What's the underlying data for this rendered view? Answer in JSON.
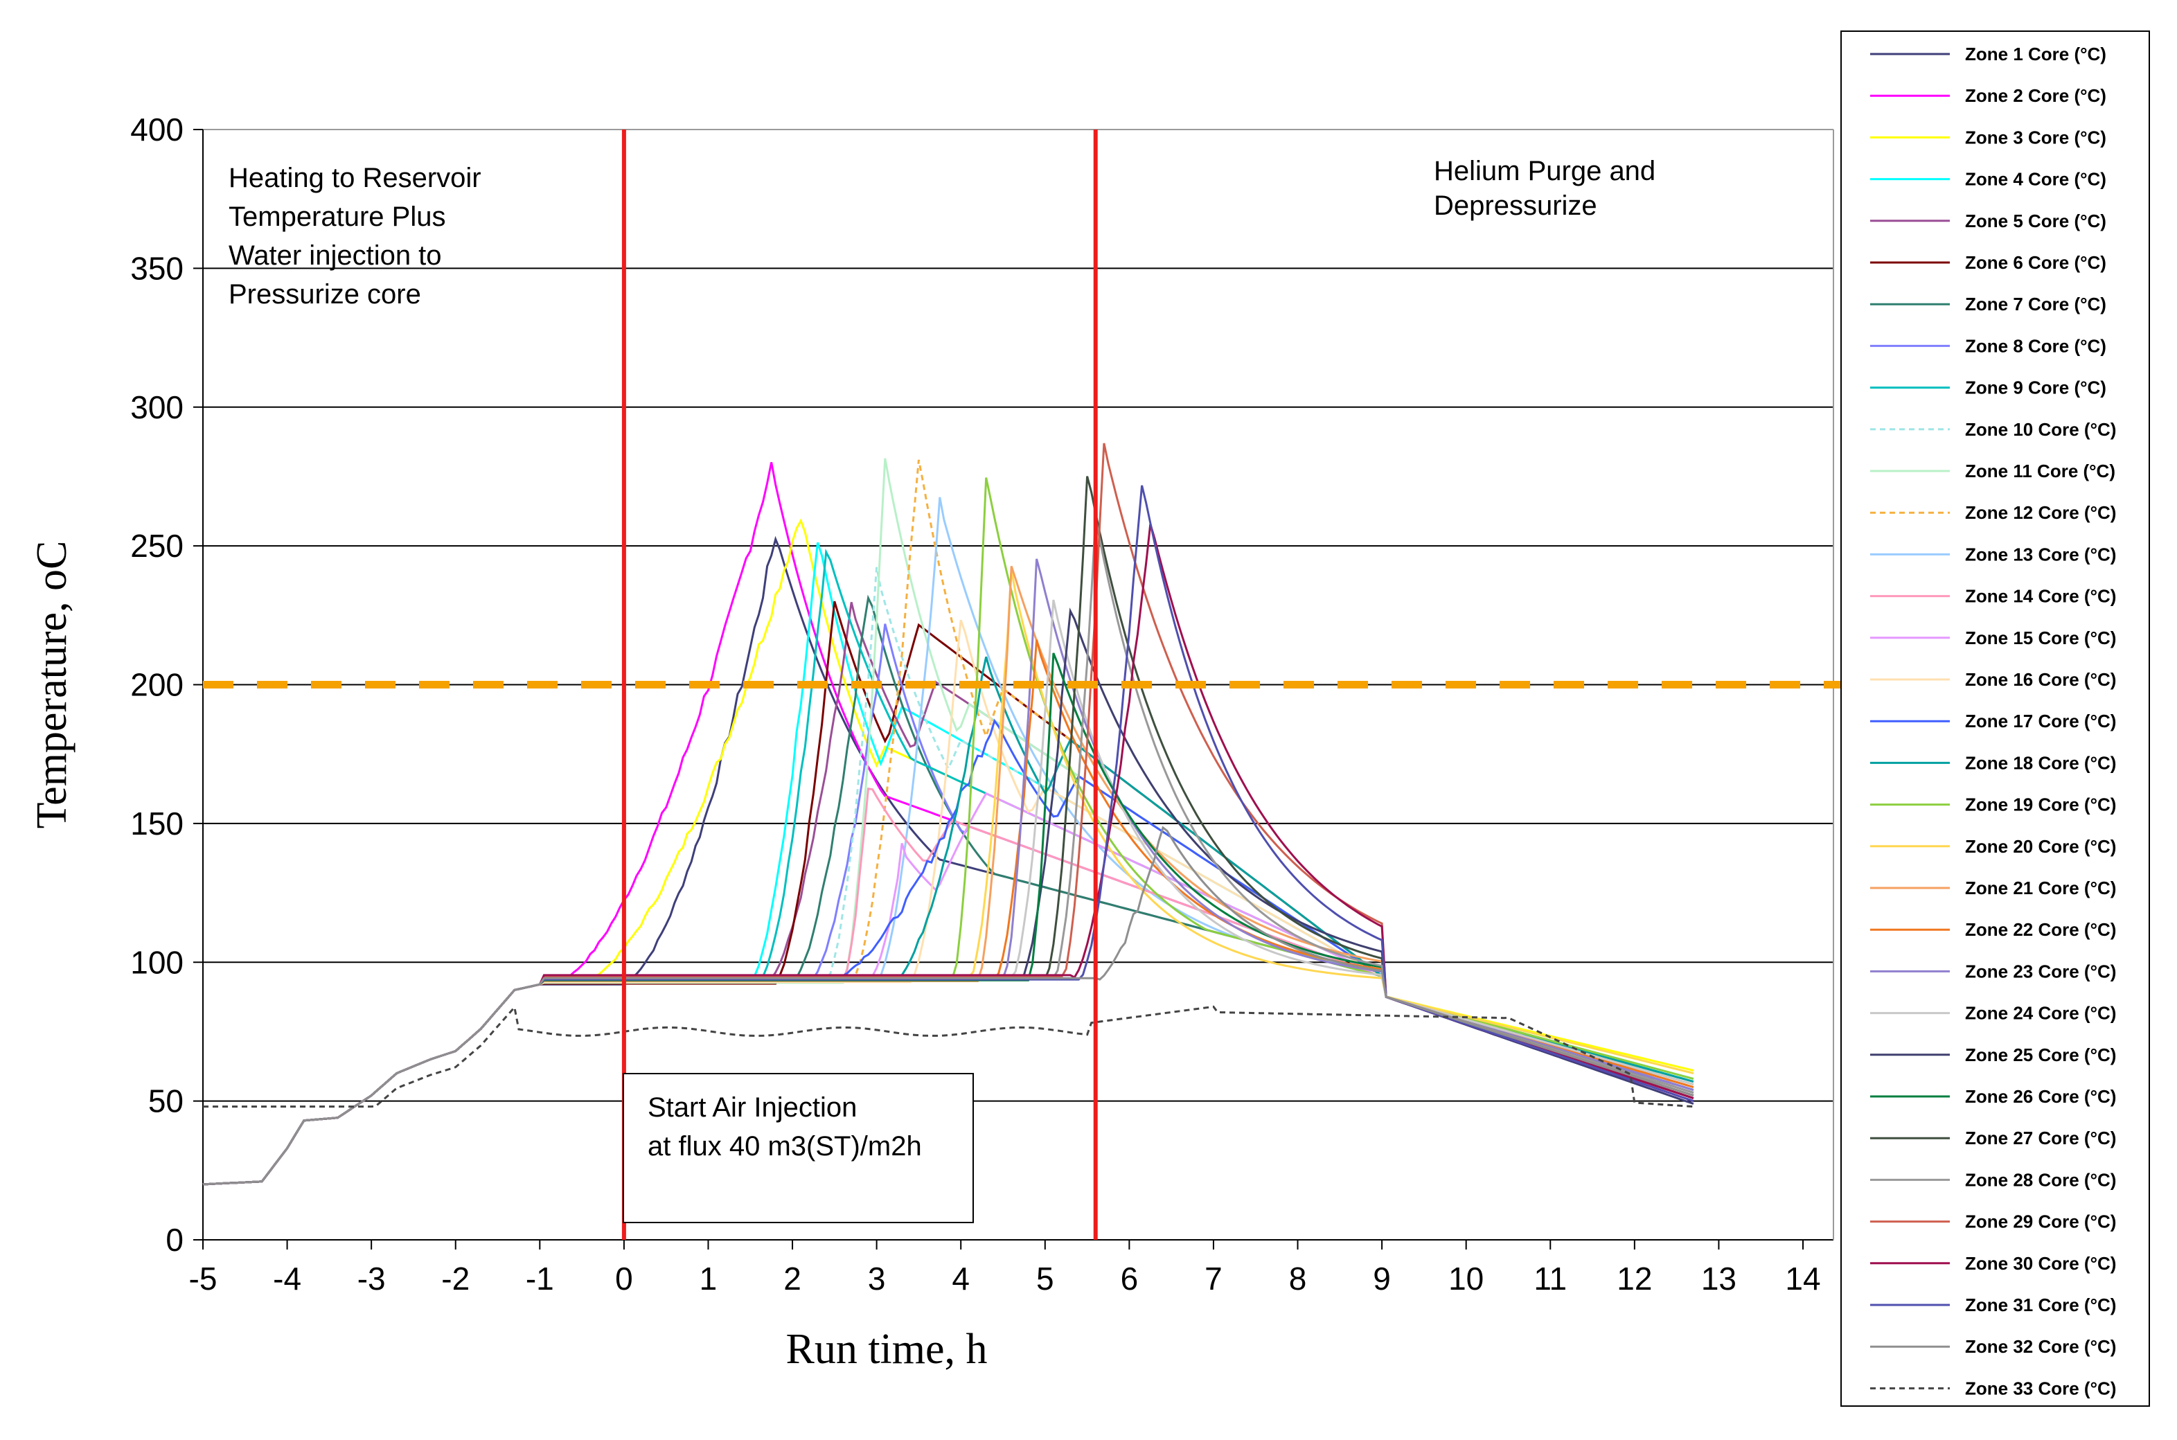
{
  "chart_data": {
    "type": "line",
    "xlabel": "Run time, h",
    "ylabel": "Temperature, oC",
    "xlim": [
      -5,
      14.5
    ],
    "ylim": [
      0,
      400
    ],
    "xticks": [
      -5,
      -4,
      -3,
      -2,
      -1,
      0,
      1,
      2,
      3,
      4,
      5,
      6,
      7,
      8,
      9,
      10,
      11,
      12,
      13,
      14
    ],
    "yticks": [
      0,
      50,
      100,
      150,
      200,
      250,
      300,
      350,
      400
    ],
    "grid": "horizontal",
    "legend_position": "right",
    "reference_lines": [
      {
        "name": "start-air-injection-line",
        "orientation": "vertical",
        "x": 0,
        "color": "#ee1c1c"
      },
      {
        "name": "end-air-injection-line",
        "orientation": "vertical",
        "x": 5.6,
        "color": "#ee1c1c"
      },
      {
        "name": "temperature-200-line",
        "orientation": "horizontal",
        "y": 200,
        "color": "#f5a100",
        "dashed": true
      }
    ],
    "annotations": [
      {
        "name": "heating-annotation",
        "lines": [
          "Heating to Reservoir",
          "Temperature  Plus",
          "Water injection to",
          "Pressurize core"
        ]
      },
      {
        "name": "purge-annotation",
        "lines": [
          "Helium Purge and",
          "Depressurize"
        ]
      },
      {
        "name": "air-injection-annotation",
        "lines": [
          "Start Air Injection",
          "at flux 40 m3(ST)/m2h"
        ],
        "boxed": true
      }
    ],
    "series": [
      {
        "name": "Zone 1 Core (°C)",
        "color": "#3f3f7a",
        "dashed": false,
        "peak_time": 1.8,
        "peak": 254,
        "onset": 0,
        "plateau_drift": 0,
        "end_value": 49
      },
      {
        "name": "Zone 2 Core (°C)",
        "color": "#ff00ff",
        "dashed": false,
        "peak_time": 1.75,
        "peak": 279,
        "onset": -0.8,
        "plateau_drift": 0.3,
        "end_value": 50
      },
      {
        "name": "Zone 3 Core (°C)",
        "color": "#ffff00",
        "dashed": false,
        "peak_time": 2.1,
        "peak": 262,
        "onset": -0.5,
        "plateau_drift": 0.6,
        "end_value": 61
      },
      {
        "name": "Zone 4 Core (°C)",
        "color": "#00ffff",
        "dashed": false,
        "peak_time": 2.3,
        "peak": 254,
        "onset": 1.5,
        "plateau_drift": 0.9,
        "end_value": 58
      },
      {
        "name": "Zone 5 Core (°C)",
        "color": "#9b4f96",
        "dashed": false,
        "peak_time": 2.7,
        "peak": 228,
        "onset": 1.7,
        "plateau_drift": 1.2,
        "end_value": 53
      },
      {
        "name": "Zone 6 Core (°C)",
        "color": "#7b0000",
        "dashed": false,
        "peak_time": 2.5,
        "peak": 230,
        "onset": 1.8,
        "plateau_drift": 1.5,
        "end_value": 51
      },
      {
        "name": "Zone 7 Core (°C)",
        "color": "#2f7f6f",
        "dashed": false,
        "peak_time": 2.9,
        "peak": 234,
        "onset": 2.0,
        "plateau_drift": 1.8,
        "end_value": 52
      },
      {
        "name": "Zone 8 Core (°C)",
        "color": "#7f7fff",
        "dashed": false,
        "peak_time": 3.1,
        "peak": 222,
        "onset": 2.2,
        "plateau_drift": 2.1,
        "end_value": 54
      },
      {
        "name": "Zone 9 Core (°C)",
        "color": "#00bfbf",
        "dashed": false,
        "peak_time": 2.4,
        "peak": 250,
        "onset": 1.6,
        "plateau_drift": 2.4,
        "end_value": 57
      },
      {
        "name": "Zone 10 Core (°C)",
        "color": "#9fe6e6",
        "dashed": true,
        "peak_time": 3.0,
        "peak": 240,
        "onset": 2.4,
        "plateau_drift": 2.7,
        "end_value": 55
      },
      {
        "name": "Zone 11 Core (°C)",
        "color": "#b8f0c8",
        "dashed": false,
        "peak_time": 3.1,
        "peak": 281,
        "onset": 2.6,
        "plateau_drift": 3.0,
        "end_value": 56
      },
      {
        "name": "Zone 12 Core (°C)",
        "color": "#f5b040",
        "dashed": true,
        "peak_time": 3.5,
        "peak": 282,
        "onset": 2.7,
        "plateau_drift": 3.3,
        "end_value": 55
      },
      {
        "name": "Zone 13 Core (°C)",
        "color": "#99ccff",
        "dashed": false,
        "peak_time": 3.75,
        "peak": 265,
        "onset": 3.0,
        "plateau_drift": 3.6,
        "end_value": 54
      },
      {
        "name": "Zone 14 Core (°C)",
        "color": "#ff99bb",
        "dashed": false,
        "peak_time": 2.9,
        "peak": 165,
        "onset": 2.6,
        "plateau_drift": 3.9,
        "end_value": 53
      },
      {
        "name": "Zone 15 Core (°C)",
        "color": "#e699ff",
        "dashed": false,
        "peak_time": 3.3,
        "peak": 140,
        "onset": 2.9,
        "plateau_drift": 4.2,
        "end_value": 52
      },
      {
        "name": "Zone 16 Core (°C)",
        "color": "#ffe0b0",
        "dashed": false,
        "peak_time": 4.0,
        "peak": 225,
        "onset": 3.4,
        "plateau_drift": 4.5,
        "end_value": 53
      },
      {
        "name": "Zone 17 Core (°C)",
        "color": "#3f5fff",
        "dashed": false,
        "peak_time": 4.4,
        "peak": 188,
        "onset": 2.4,
        "plateau_drift": 4.8,
        "end_value": 54
      },
      {
        "name": "Zone 18 Core (°C)",
        "color": "#00a0a0",
        "dashed": false,
        "peak_time": 4.3,
        "peak": 209,
        "onset": 3.2,
        "plateau_drift": 5.1,
        "end_value": 57
      },
      {
        "name": "Zone 19 Core (°C)",
        "color": "#8ccf3f",
        "dashed": false,
        "peak_time": 4.3,
        "peak": 275,
        "onset": 3.9,
        "plateau_drift": 5.4,
        "end_value": 58
      },
      {
        "name": "Zone 20 Core (°C)",
        "color": "#ffd750",
        "dashed": false,
        "peak_time": 4.6,
        "peak": 240,
        "onset": 4.1,
        "plateau_drift": 5.7,
        "end_value": 60
      },
      {
        "name": "Zone 21 Core (°C)",
        "color": "#f5a060",
        "dashed": false,
        "peak_time": 4.6,
        "peak": 243,
        "onset": 4.2,
        "plateau_drift": 6.0,
        "end_value": 56
      },
      {
        "name": "Zone 22 Core (°C)",
        "color": "#f07820",
        "dashed": false,
        "peak_time": 4.9,
        "peak": 215,
        "onset": 4.4,
        "plateau_drift": 6.3,
        "end_value": 55
      },
      {
        "name": "Zone 23 Core (°C)",
        "color": "#8f7fcf",
        "dashed": false,
        "peak_time": 4.9,
        "peak": 246,
        "onset": 4.5,
        "plateau_drift": 6.6,
        "end_value": 54
      },
      {
        "name": "Zone 24 Core (°C)",
        "color": "#c8c8c8",
        "dashed": false,
        "peak_time": 5.1,
        "peak": 230,
        "onset": 4.6,
        "plateau_drift": 6.9,
        "end_value": 56
      },
      {
        "name": "Zone 25 Core (°C)",
        "color": "#3f3f6f",
        "dashed": false,
        "peak_time": 5.3,
        "peak": 228,
        "onset": 4.7,
        "plateau_drift": 7.2,
        "end_value": 53
      },
      {
        "name": "Zone 26 Core (°C)",
        "color": "#007f3f",
        "dashed": false,
        "peak_time": 5.1,
        "peak": 212,
        "onset": 4.8,
        "plateau_drift": 7.5,
        "end_value": 52
      },
      {
        "name": "Zone 27 Core (°C)",
        "color": "#3f4f3f",
        "dashed": false,
        "peak_time": 5.5,
        "peak": 277,
        "onset": 5.0,
        "plateau_drift": 7.8,
        "end_value": 51
      },
      {
        "name": "Zone 28 Core (°C)",
        "color": "#999999",
        "dashed": false,
        "peak_time": 5.6,
        "peak": 260,
        "onset": 5.1,
        "plateau_drift": 8.1,
        "end_value": 53
      },
      {
        "name": "Zone 29 Core (°C)",
        "color": "#cf5f4f",
        "dashed": false,
        "peak_time": 5.7,
        "peak": 286,
        "onset": 5.2,
        "plateau_drift": 8.4,
        "end_value": 52
      },
      {
        "name": "Zone 30 Core (°C)",
        "color": "#9f0f4f",
        "dashed": false,
        "peak_time": 6.25,
        "peak": 259,
        "onset": 5.3,
        "plateau_drift": 8.7,
        "end_value": 51
      },
      {
        "name": "Zone 31 Core (°C)",
        "color": "#4f4faf",
        "dashed": false,
        "peak_time": 6.15,
        "peak": 273,
        "onset": 5.4,
        "plateau_drift": 9.0,
        "end_value": 50
      },
      {
        "name": "Zone 32 Core (°C)",
        "color": "#8f8f8f",
        "dashed": false,
        "peak_time": 6.4,
        "peak": 150,
        "onset": 5.6,
        "plateau_drift": 9.3,
        "end_value": 52
      },
      {
        "name": "Zone 33 Core (°C)",
        "color": "#444444",
        "dashed": true,
        "peak_time": 6.5,
        "peak": 85,
        "onset": 5.8,
        "plateau_drift": 0,
        "end_value": 48
      }
    ]
  }
}
